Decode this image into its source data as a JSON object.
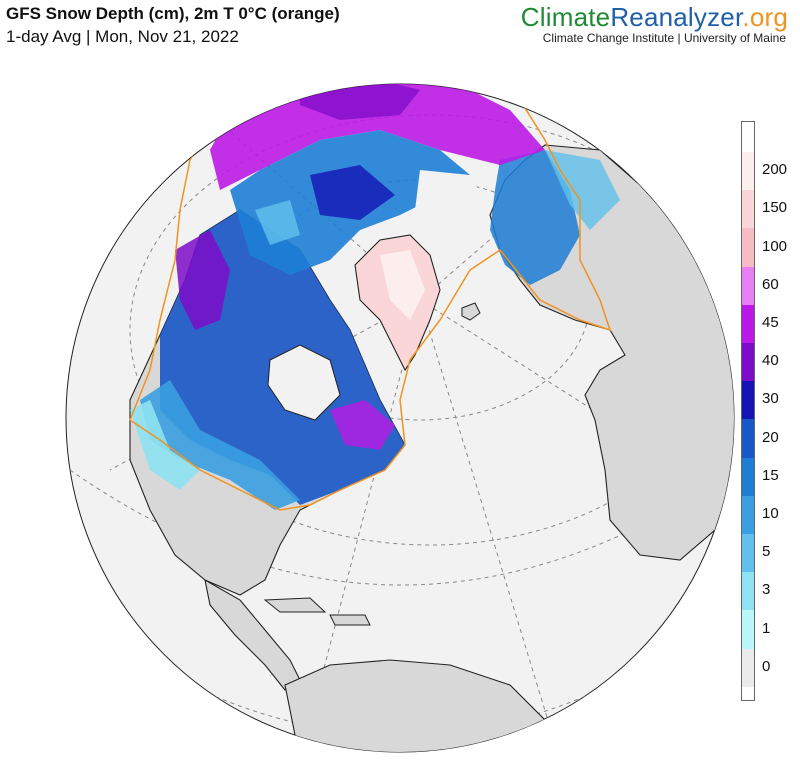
{
  "header": {
    "title": "GFS Snow Depth (cm), 2m T 0°C (orange)",
    "subtitle": "1-day Avg | Mon, Nov 21, 2022"
  },
  "brand": {
    "part1": "Climate",
    "part2": "Reanalyzer",
    "part3": ".org",
    "tagline": "Climate Change Institute | University of Maine",
    "colors": {
      "part1": "#1f8a34",
      "part2": "#1f5fa8",
      "part3": "#f0931f"
    }
  },
  "map": {
    "projection": "orthographic",
    "colors": {
      "ocean": "#f2f2f2",
      "land": "#d8d8d8",
      "border": "#333333",
      "freezing_line": "#f0931f"
    }
  },
  "legend": {
    "labels": [
      "0",
      "1",
      "3",
      "5",
      "10",
      "15",
      "20",
      "30",
      "40",
      "45",
      "60",
      "100",
      "150",
      "200"
    ],
    "colors": [
      "#ebebeb",
      "#b9f7fb",
      "#8fe2f2",
      "#62c1ec",
      "#3a9fe0",
      "#1e7ed6",
      "#1956c6",
      "#1414b4",
      "#7c0cc8",
      "#bb19e6",
      "#ea7ff5",
      "#f8bcc5",
      "#fad6d8",
      "#fdeeee"
    ]
  }
}
